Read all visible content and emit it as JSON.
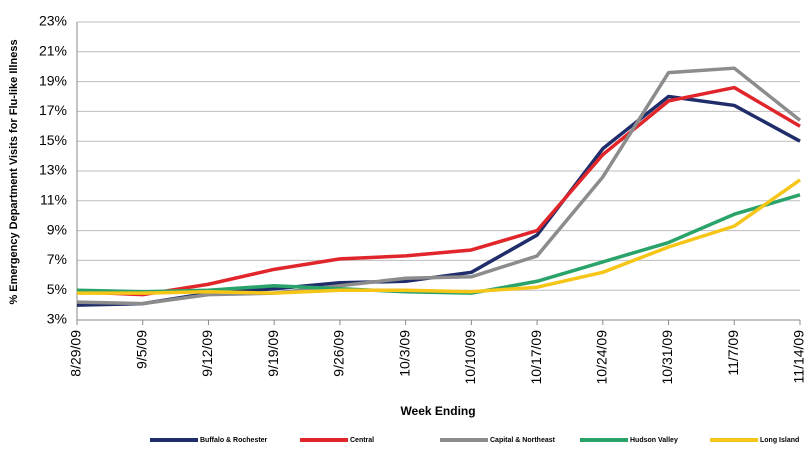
{
  "chart_data": {
    "type": "line",
    "y_label": "% Emergency Department Visits for Flu-like Illness",
    "x_label": "Week Ending",
    "categories": [
      "8/29/09",
      "9/5/09",
      "9/12/09",
      "9/19/09",
      "9/26/09",
      "10/3/09",
      "10/10/09",
      "10/17/09",
      "10/24/09",
      "10/31/09",
      "11/7/09",
      "11/14/09"
    ],
    "series": [
      {
        "name": "Buffalo & Rochester",
        "color": "#1f2d6b",
        "values": [
          4.0,
          4.1,
          4.8,
          5.1,
          5.5,
          5.6,
          6.2,
          8.7,
          14.5,
          18.0,
          17.4,
          15.0
        ]
      },
      {
        "name": "Central",
        "color": "#e0262b",
        "values": [
          4.9,
          4.7,
          5.4,
          6.4,
          7.1,
          7.3,
          7.7,
          9.0,
          14.1,
          17.7,
          18.6,
          16.0
        ]
      },
      {
        "name": "Capital & Northeast",
        "color": "#8c8c8c",
        "values": [
          4.2,
          4.1,
          4.7,
          4.8,
          5.3,
          5.8,
          5.9,
          7.3,
          12.6,
          19.6,
          19.9,
          16.4
        ]
      },
      {
        "name": "Hudson Valley",
        "color": "#2aa36b",
        "values": [
          5.0,
          4.9,
          5.0,
          5.3,
          5.1,
          4.9,
          4.8,
          5.6,
          6.9,
          8.2,
          10.1,
          11.4
        ]
      },
      {
        "name": "Long Island",
        "color": "#f5c518",
        "values": [
          4.8,
          4.8,
          4.9,
          4.8,
          5.0,
          5.0,
          4.9,
          5.2,
          6.2,
          7.9,
          9.3,
          12.4
        ]
      }
    ],
    "ylim": [
      3,
      23
    ],
    "yticks": [
      {
        "value": 3,
        "label": "3%"
      },
      {
        "value": 5,
        "label": "5%"
      },
      {
        "value": 7,
        "label": "7%"
      },
      {
        "value": 9,
        "label": "9%"
      },
      {
        "value": 11,
        "label": "11%"
      },
      {
        "value": 13,
        "label": "13%"
      },
      {
        "value": 15,
        "label": "15%"
      },
      {
        "value": 17,
        "label": "17%"
      },
      {
        "value": 19,
        "label": "19%"
      },
      {
        "value": 21,
        "label": "21%"
      },
      {
        "value": 23,
        "label": "23%"
      }
    ],
    "grid": true
  }
}
